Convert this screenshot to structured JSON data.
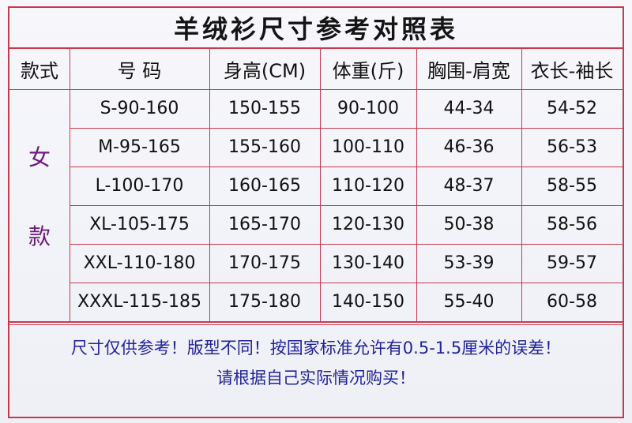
{
  "title": "羊绒衫尺寸参考对照表",
  "table": {
    "header": [
      "款式",
      "号 码",
      "身高(CM)",
      "体重(斤)",
      "胸围-肩宽",
      "衣长-袖长"
    ],
    "group": [
      "女",
      "款"
    ],
    "rows": [
      [
        "S-90-160",
        "150-155",
        "90-100",
        "44-34",
        "54-52"
      ],
      [
        "M-95-165",
        "155-160",
        "100-110",
        "46-36",
        "56-53"
      ],
      [
        "L-100-170",
        "160-165",
        "110-120",
        "48-37",
        "58-55"
      ],
      [
        "XL-105-175",
        "165-170",
        "120-130",
        "50-38",
        "58-56"
      ],
      [
        "XXL-110-180",
        "170-175",
        "130-140",
        "53-39",
        "59-57"
      ],
      [
        "XXXL-115-185",
        "175-180",
        "140-150",
        "55-40",
        "60-58"
      ]
    ]
  },
  "footer": [
    "尺寸仅供参考！版型不同！按国家标准允许有0.5-1.5厘米的误差！",
    "请根据自己实际情况购买！"
  ]
}
